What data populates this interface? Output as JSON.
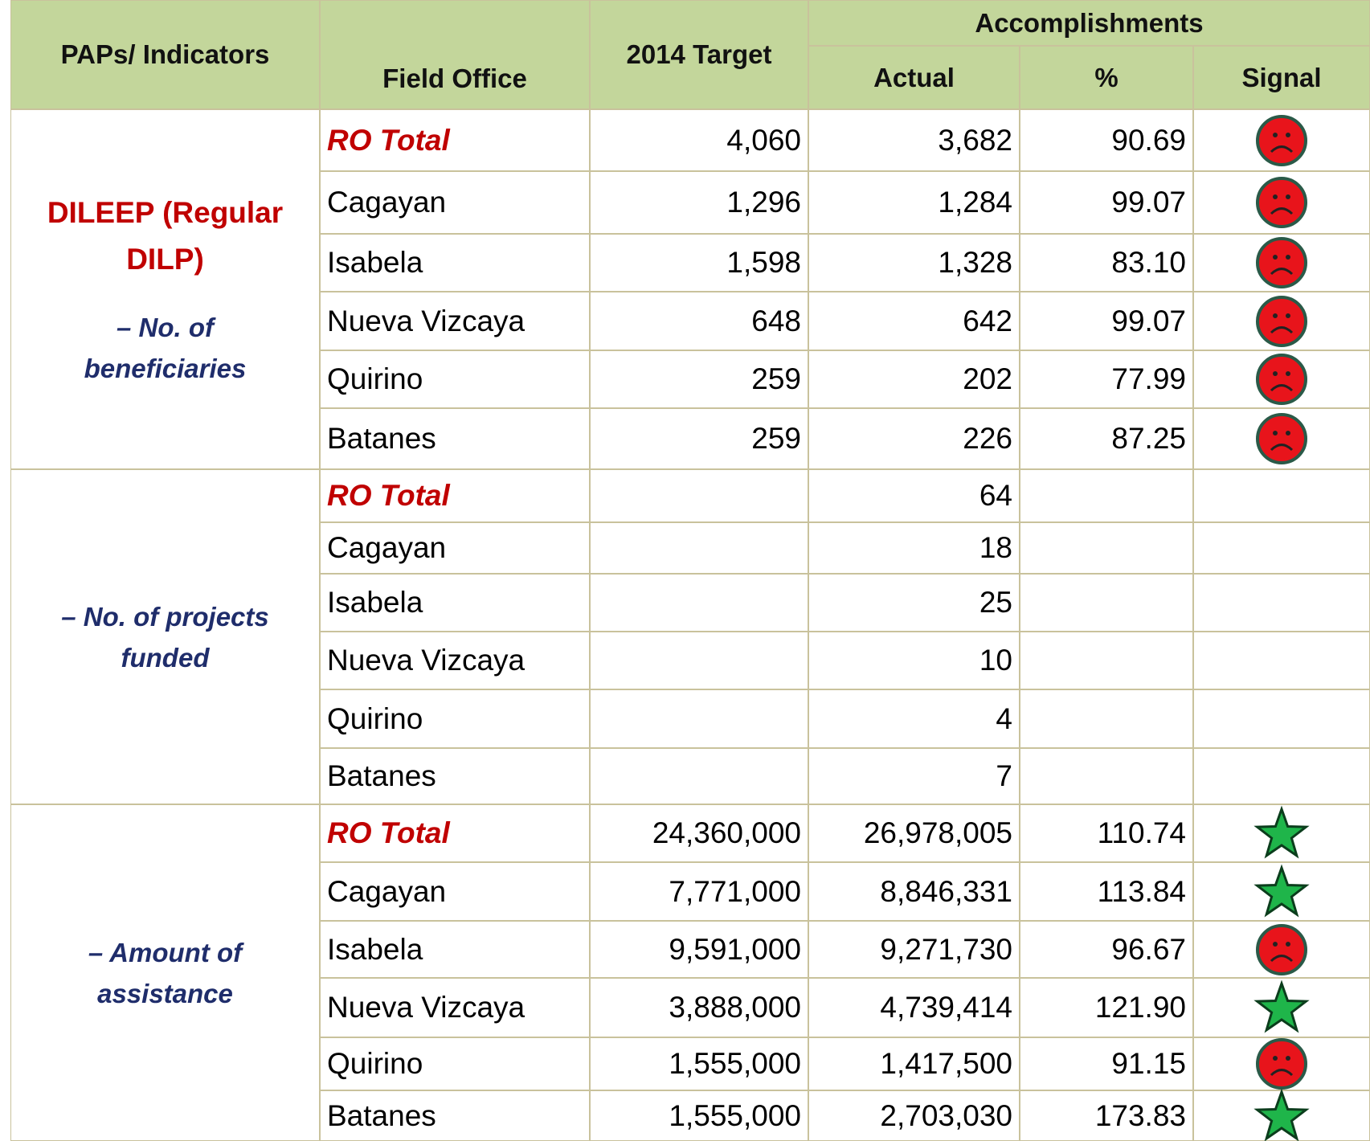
{
  "header": {
    "paps": "PAPs/ Indicators",
    "field_office": "Field Office",
    "target": "2014 Target",
    "accomplishments": "Accomplishments",
    "actual": "Actual",
    "percent": "%",
    "signal": "Signal"
  },
  "groups": [
    {
      "title": "DILEEP (Regular DILP)",
      "subtitle": "– No. of beneficiaries",
      "rows": [
        {
          "office": "RO Total",
          "target": "4,060",
          "actual": "3,682",
          "percent": "90.69",
          "signal": "red"
        },
        {
          "office": "Cagayan",
          "target": "1,296",
          "actual": "1,284",
          "percent": "99.07",
          "signal": "red"
        },
        {
          "office": "Isabela",
          "target": "1,598",
          "actual": "1,328",
          "percent": "83.10",
          "signal": "red"
        },
        {
          "office": "Nueva Vizcaya",
          "target": "648",
          "actual": "642",
          "percent": "99.07",
          "signal": "red"
        },
        {
          "office": "Quirino",
          "target": "259",
          "actual": "202",
          "percent": "77.99",
          "signal": "red"
        },
        {
          "office": "Batanes",
          "target": "259",
          "actual": "226",
          "percent": "87.25",
          "signal": "red"
        }
      ]
    },
    {
      "subtitle": "– No. of projects funded",
      "rows": [
        {
          "office": "RO Total",
          "actual": "64"
        },
        {
          "office": "Cagayan",
          "actual": "18"
        },
        {
          "office": "Isabela",
          "actual": "25"
        },
        {
          "office": "Nueva Vizcaya",
          "actual": "10"
        },
        {
          "office": "Quirino",
          "actual": "4"
        },
        {
          "office": "Batanes",
          "actual": "7"
        }
      ]
    },
    {
      "subtitle": "– Amount of assistance",
      "rows": [
        {
          "office": "RO Total",
          "target": "24,360,000",
          "actual": "26,978,005",
          "percent": "110.74",
          "signal": "green"
        },
        {
          "office": "Cagayan",
          "target": "7,771,000",
          "actual": "8,846,331",
          "percent": "113.84",
          "signal": "green"
        },
        {
          "office": "Isabela",
          "target": "9,591,000",
          "actual": "9,271,730",
          "percent": "96.67",
          "signal": "red"
        },
        {
          "office": "Nueva Vizcaya",
          "target": "3,888,000",
          "actual": "4,739,414",
          "percent": "121.90",
          "signal": "green"
        },
        {
          "office": "Quirino",
          "target": "1,555,000",
          "actual": "1,417,500",
          "percent": "91.15",
          "signal": "red"
        },
        {
          "office": "Batanes",
          "target": "1,555,000",
          "actual": "2,703,030",
          "percent": "173.83",
          "signal": "green"
        }
      ]
    }
  ]
}
